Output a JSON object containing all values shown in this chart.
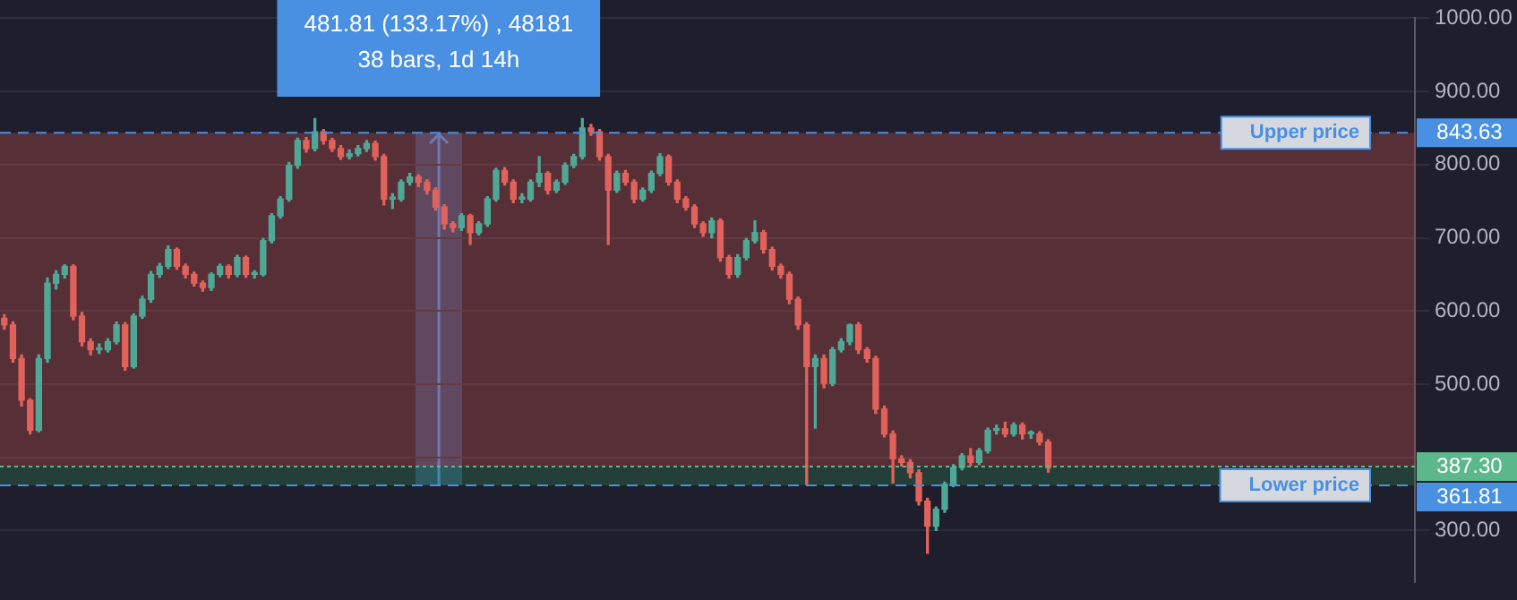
{
  "chart_data": {
    "type": "candlestick",
    "tick_labels": "y",
    "grid": "y",
    "annotations": [
      "481.81 (133.17%) , 48181",
      "38 bars, 1d 14h",
      "843.63",
      "361.81",
      "387.30"
    ],
    "ylim": [
      230,
      1000
    ],
    "yticks": [
      {
        "value": 300,
        "label": "300.00"
      },
      {
        "value": 400,
        "label": null
      },
      {
        "value": 500,
        "label": "500.00"
      },
      {
        "value": 600,
        "label": "600.00"
      },
      {
        "value": 700,
        "label": "700.00"
      },
      {
        "value": 800,
        "label": "800.00"
      },
      {
        "value": 900,
        "label": "900.00"
      },
      {
        "value": 1000,
        "label": "1000.00"
      }
    ],
    "ref_lines": [
      {
        "axis": "y",
        "value": 843.63,
        "label": "Upper price",
        "color": "#4a90e2",
        "line_style": "dashed"
      },
      {
        "axis": "y",
        "value": 361.81,
        "label": "Lower price",
        "color": "#4a90e2",
        "line_style": "dashed"
      },
      {
        "axis": "y",
        "value": 387.3,
        "label": null,
        "color": "#5cb88a",
        "line_style": "dotted"
      }
    ],
    "bands": [
      {
        "axis": "y",
        "from": 387.3,
        "to": 843.63,
        "label": null,
        "color": "#c0504d"
      },
      {
        "axis": "y",
        "from": 361.81,
        "to": 387.3,
        "label": null,
        "color": "#2e7d4f"
      }
    ],
    "categories": [
      null,
      null,
      null,
      null,
      null,
      null,
      null,
      null,
      null,
      null,
      null,
      null,
      null,
      null,
      null,
      null,
      null,
      null,
      null,
      null,
      null,
      null,
      null,
      null,
      null,
      null,
      null,
      null,
      null,
      null,
      null,
      null,
      null,
      null,
      null,
      null,
      null,
      null,
      null,
      null,
      null,
      null,
      null,
      null,
      null,
      null,
      null,
      null,
      null,
      null,
      null,
      null,
      null,
      null,
      null,
      null,
      null,
      null,
      null,
      null,
      null,
      null,
      null,
      null,
      null,
      null,
      null,
      null,
      null,
      null,
      null,
      null,
      null,
      null,
      null,
      null,
      null,
      null,
      null,
      null,
      null,
      null,
      null,
      null,
      null,
      null,
      null,
      null,
      null,
      null,
      null,
      null,
      null,
      null,
      null,
      null,
      null,
      null,
      null,
      null,
      null,
      null,
      null,
      null,
      null,
      null,
      null,
      null,
      null,
      null,
      null,
      null,
      null,
      null,
      null,
      null,
      null,
      null,
      null,
      null,
      null,
      null,
      null,
      null,
      null,
      null,
      null,
      null,
      null,
      null,
      null,
      null,
      null,
      null,
      null,
      null,
      null,
      null,
      null,
      null,
      null,
      null,
      null,
      null,
      null,
      null,
      null,
      null,
      null,
      null,
      null,
      null,
      null,
      null,
      null,
      null,
      null,
      null,
      null,
      null,
      null,
      null,
      null,
      null
    ],
    "ohlc": [
      [
        590,
        595,
        575,
        581
      ],
      [
        581,
        585,
        530,
        535
      ],
      [
        535,
        540,
        470,
        478
      ],
      [
        478,
        480,
        432,
        437
      ],
      [
        437,
        540,
        435,
        535
      ],
      [
        535,
        645,
        530,
        638
      ],
      [
        638,
        655,
        630,
        650
      ],
      [
        650,
        663,
        645,
        661
      ],
      [
        661,
        663,
        588,
        593
      ],
      [
        593,
        598,
        552,
        558
      ],
      [
        558,
        562,
        540,
        547
      ],
      [
        547,
        555,
        542,
        547
      ],
      [
        547,
        562,
        544,
        558
      ],
      [
        558,
        585,
        555,
        581
      ],
      [
        581,
        584,
        519,
        524
      ],
      [
        524,
        596,
        522,
        593
      ],
      [
        593,
        620,
        590,
        616
      ],
      [
        616,
        654,
        612,
        650
      ],
      [
        650,
        665,
        646,
        661
      ],
      [
        661,
        689,
        658,
        684
      ],
      [
        684,
        686,
        657,
        661
      ],
      [
        661,
        664,
        645,
        650
      ],
      [
        650,
        653,
        634,
        638
      ],
      [
        638,
        641,
        627,
        632
      ],
      [
        632,
        652,
        628,
        650
      ],
      [
        650,
        664,
        647,
        661
      ],
      [
        661,
        663,
        645,
        650
      ],
      [
        650,
        676,
        647,
        673
      ],
      [
        673,
        675,
        646,
        650
      ],
      [
        650,
        655,
        645,
        650
      ],
      [
        650,
        699,
        648,
        696
      ],
      [
        696,
        733,
        693,
        730
      ],
      [
        730,
        756,
        727,
        753
      ],
      [
        753,
        803,
        750,
        799
      ],
      [
        799,
        836,
        795,
        833
      ],
      [
        833,
        837,
        817,
        822
      ],
      [
        822,
        863,
        819,
        845
      ],
      [
        845,
        848,
        828,
        833
      ],
      [
        833,
        836,
        818,
        822
      ],
      [
        822,
        826,
        807,
        811
      ],
      [
        811,
        820,
        808,
        815
      ],
      [
        815,
        826,
        812,
        822
      ],
      [
        822,
        833,
        818,
        829
      ],
      [
        829,
        832,
        806,
        811
      ],
      [
        811,
        814,
        745,
        753
      ],
      [
        753,
        760,
        740,
        753
      ],
      [
        753,
        779,
        750,
        776
      ],
      [
        776,
        788,
        772,
        783
      ],
      [
        783,
        786,
        770,
        776
      ],
      [
        776,
        779,
        760,
        765
      ],
      [
        765,
        768,
        738,
        742
      ],
      [
        742,
        745,
        712,
        719
      ],
      [
        719,
        722,
        708,
        714
      ],
      [
        714,
        733,
        710,
        730
      ],
      [
        730,
        732,
        691,
        707
      ],
      [
        707,
        722,
        704,
        719
      ],
      [
        719,
        756,
        716,
        753
      ],
      [
        753,
        795,
        750,
        792
      ],
      [
        792,
        796,
        772,
        776
      ],
      [
        776,
        779,
        748,
        753
      ],
      [
        753,
        760,
        748,
        753
      ],
      [
        753,
        779,
        750,
        776
      ],
      [
        776,
        811,
        770,
        788
      ],
      [
        788,
        790,
        760,
        765
      ],
      [
        765,
        779,
        762,
        776
      ],
      [
        776,
        802,
        773,
        799
      ],
      [
        799,
        814,
        796,
        811
      ],
      [
        811,
        863,
        808,
        850
      ],
      [
        850,
        855,
        840,
        845
      ],
      [
        845,
        848,
        806,
        811
      ],
      [
        811,
        814,
        691,
        765
      ],
      [
        765,
        791,
        762,
        788
      ],
      [
        788,
        792,
        772,
        776
      ],
      [
        776,
        779,
        748,
        753
      ],
      [
        753,
        768,
        750,
        765
      ],
      [
        765,
        791,
        762,
        788
      ],
      [
        788,
        815,
        785,
        811
      ],
      [
        811,
        813,
        772,
        776
      ],
      [
        776,
        779,
        748,
        753
      ],
      [
        753,
        756,
        738,
        742
      ],
      [
        742,
        745,
        714,
        719
      ],
      [
        719,
        722,
        702,
        707
      ],
      [
        707,
        727,
        700,
        723
      ],
      [
        723,
        726,
        668,
        673
      ],
      [
        673,
        676,
        645,
        650
      ],
      [
        650,
        677,
        646,
        673
      ],
      [
        673,
        699,
        670,
        696
      ],
      [
        696,
        723,
        693,
        707
      ],
      [
        707,
        710,
        679,
        684
      ],
      [
        684,
        687,
        656,
        661
      ],
      [
        661,
        664,
        645,
        650
      ],
      [
        650,
        653,
        610,
        616
      ],
      [
        616,
        619,
        575,
        581
      ],
      [
        581,
        584,
        363,
        524
      ],
      [
        524,
        540,
        440,
        535
      ],
      [
        535,
        540,
        495,
        501
      ],
      [
        501,
        550,
        498,
        547
      ],
      [
        547,
        562,
        544,
        558
      ],
      [
        558,
        582,
        554,
        581
      ],
      [
        581,
        584,
        542,
        547
      ],
      [
        547,
        550,
        530,
        535
      ],
      [
        535,
        538,
        460,
        466
      ],
      [
        466,
        470,
        428,
        432
      ],
      [
        432,
        436,
        365,
        398
      ],
      [
        398,
        402,
        388,
        393
      ],
      [
        393,
        397,
        372,
        379
      ],
      [
        379,
        383,
        335,
        340
      ],
      [
        340,
        344,
        269,
        306
      ],
      [
        306,
        332,
        300,
        329
      ],
      [
        329,
        366,
        325,
        363
      ],
      [
        363,
        390,
        360,
        386
      ],
      [
        386,
        405,
        383,
        402
      ],
      [
        402,
        412,
        389,
        393
      ],
      [
        393,
        412,
        390,
        409
      ],
      [
        409,
        440,
        406,
        437
      ],
      [
        437,
        444,
        432,
        439
      ],
      [
        439,
        448,
        428,
        432
      ],
      [
        432,
        447,
        429,
        444
      ],
      [
        444,
        447,
        425,
        432
      ],
      [
        432,
        436,
        426,
        432
      ],
      [
        432,
        435,
        417,
        421
      ],
      [
        421,
        424,
        380,
        386
      ],
      null,
      null,
      null,
      null,
      null,
      null,
      null,
      null,
      null,
      null,
      null,
      null,
      null,
      null,
      null,
      null,
      null,
      null,
      null,
      null,
      null,
      null,
      null,
      null,
      null,
      null,
      null,
      null,
      null,
      null,
      null,
      null,
      null,
      null,
      null,
      null,
      null,
      null,
      null,
      null,
      null,
      null
    ]
  }
}
